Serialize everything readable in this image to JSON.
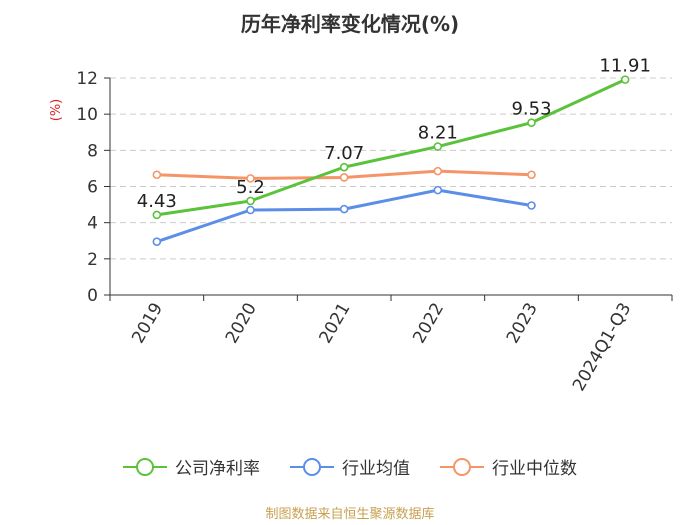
{
  "chart_data": {
    "type": "line",
    "title": "历年净利率变化情况(%)",
    "ylabel": "(%)",
    "categories": [
      "2019",
      "2020",
      "2021",
      "2022",
      "2023",
      "2024Q1-Q3"
    ],
    "ylim": [
      0,
      12
    ],
    "yticks": [
      0,
      2,
      4,
      6,
      8,
      10,
      12
    ],
    "grid": true,
    "legend_position": "bottom",
    "series": [
      {
        "name": "公司净利率",
        "color": "#5ac33b",
        "labeled": true,
        "values": [
          4.43,
          5.2,
          7.07,
          8.21,
          9.53,
          11.91
        ]
      },
      {
        "name": "行业均值",
        "color": "#5b8ee6",
        "labeled": false,
        "values": [
          2.95,
          4.7,
          4.75,
          5.8,
          4.95,
          null
        ]
      },
      {
        "name": "行业中位数",
        "color": "#f59467",
        "labeled": false,
        "values": [
          6.65,
          6.45,
          6.5,
          6.85,
          6.65,
          null
        ]
      }
    ],
    "data_labels": [
      "4.43",
      "5.2",
      "7.07",
      "8.21",
      "9.53",
      "11.91"
    ]
  },
  "source": "制图数据来自恒生聚源数据库"
}
